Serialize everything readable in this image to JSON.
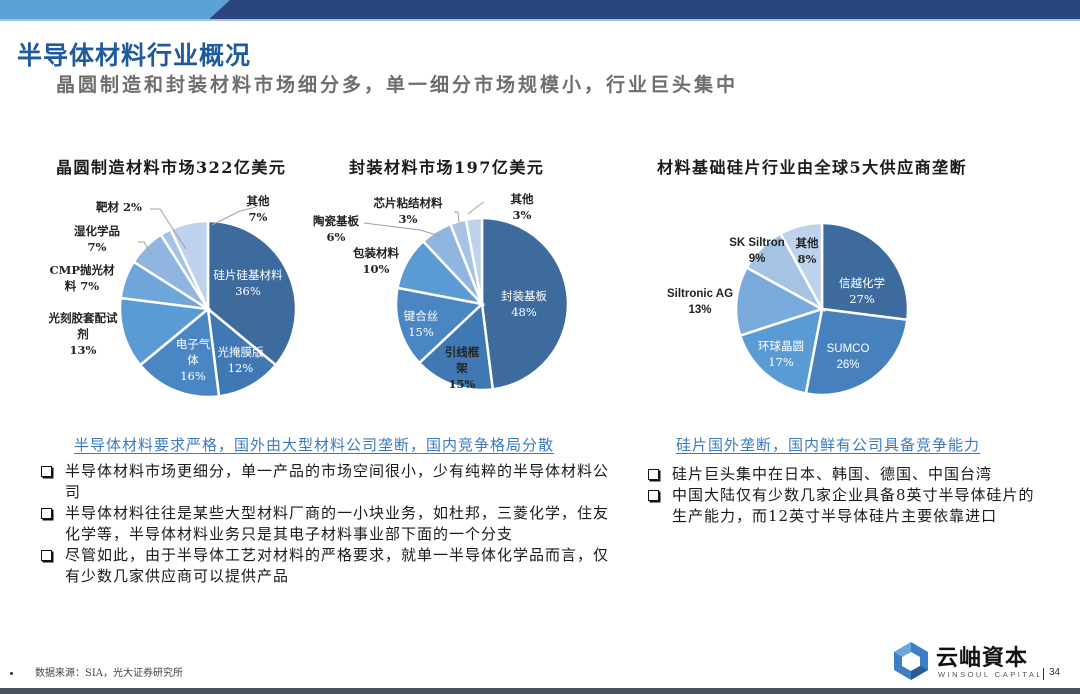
{
  "page": {
    "title": "半导体材料行业概况",
    "subtitle": "晶圆制造和封装材料市场细分多，单一细分市场规模小，行业巨头集中",
    "page_number": "34",
    "source": "数据来源：SIA，光大证券研究所"
  },
  "logo": {
    "name_cn": "云岫資本",
    "name_en": "WINSOUL CAPITAL"
  },
  "colors": {
    "header_dark": "#2b4580",
    "header_light": "#5ba3d6",
    "title_blue": "#1f5a9e",
    "link_blue": "#3a7bc0"
  },
  "chart_data": [
    {
      "type": "pie",
      "title": "晶圆制造材料市场322亿美元",
      "categories": [
        "硅片硅基材料",
        "光掩膜版",
        "电子气体",
        "光刻胶套配试剂",
        "CMP抛光材料",
        "湿化学品",
        "靶材",
        "其他"
      ],
      "values": [
        36,
        12,
        16,
        13,
        7,
        7,
        2,
        7
      ],
      "unit": "%",
      "colors": [
        "#3d6b9e",
        "#4078b4",
        "#4a86c4",
        "#5b9bd5",
        "#6ea6dc",
        "#8fb5e0",
        "#a6c3e6",
        "#bfd2ec"
      ],
      "labels": [
        {
          "name": "硅片硅基材料",
          "pct": "36%"
        },
        {
          "name": "光掩膜版",
          "pct": "12%"
        },
        {
          "name": "电子气体",
          "pct": "16%"
        },
        {
          "name": "光刻胶套配试剂",
          "pct": "13%"
        },
        {
          "name": "CMP抛光材料",
          "pct": "7%"
        },
        {
          "name": "湿化学品",
          "pct": "7%"
        },
        {
          "name": "靶材",
          "pct": "2%"
        },
        {
          "name": "其他",
          "pct": "7%"
        }
      ]
    },
    {
      "type": "pie",
      "title": "封装材料市场197亿美元",
      "categories": [
        "封装基板",
        "引线框架",
        "键合丝",
        "包装材料",
        "陶瓷基板",
        "芯片粘结材料",
        "其他"
      ],
      "values": [
        48,
        15,
        15,
        10,
        6,
        3,
        3
      ],
      "unit": "%",
      "colors": [
        "#3d6b9e",
        "#4078b4",
        "#4a86c4",
        "#5b9bd5",
        "#8fb5e0",
        "#a6c3e6",
        "#bfd2ec"
      ],
      "labels": [
        {
          "name": "封装基板",
          "pct": "48%"
        },
        {
          "name": "引线框架",
          "pct": "15%"
        },
        {
          "name": "键合丝",
          "pct": "15%"
        },
        {
          "name": "包装材料",
          "pct": "10%"
        },
        {
          "name": "陶瓷基板",
          "pct": "6%"
        },
        {
          "name": "芯片粘结材料",
          "pct": "3%"
        },
        {
          "name": "其他",
          "pct": "3%"
        }
      ]
    },
    {
      "type": "pie",
      "title": "材料基础硅片行业由全球5大供应商垄断",
      "categories": [
        "信越化学",
        "SUMCO",
        "环球晶圆",
        "Siltronic AG",
        "SK Siltron",
        "其他"
      ],
      "values": [
        27,
        26,
        17,
        13,
        9,
        8
      ],
      "unit": "%",
      "colors": [
        "#3d6b9e",
        "#4680bd",
        "#5b9bd5",
        "#7aaadc",
        "#a6c3e6",
        "#bfd2ec"
      ],
      "labels": [
        {
          "name": "信越化学",
          "pct": "27%"
        },
        {
          "name": "SUMCO",
          "pct": "26%"
        },
        {
          "name": "环球晶圆",
          "pct": "17%"
        },
        {
          "name": "Siltronic AG",
          "pct": "13%"
        },
        {
          "name": "SK Siltron",
          "pct": "9%"
        },
        {
          "name": "其他",
          "pct": "8%"
        }
      ]
    }
  ],
  "left_section": {
    "heading": "半导体材料要求严格，国外由大型材料公司垄断，国内竞争格局分散",
    "bullets": [
      "半导体材料市场更细分，单一产品的市场空间很小，少有纯粹的半导体材料公司",
      "半导体材料往往是某些大型材料厂商的一小块业务，如杜邦，三菱化学，住友化学等，半导体材料业务只是其电子材料事业部下面的一个分支",
      "尽管如此，由于半导体工艺对材料的严格要求，就单一半导体化学品而言，仅有少数几家供应商可以提供产品"
    ]
  },
  "right_section": {
    "heading": "硅片国外垄断，国内鲜有公司具备竞争能力",
    "bullets": [
      "硅片巨头集中在日本、韩国、德国、中国台湾",
      "中国大陆仅有少数几家企业具备8英寸半导体硅片的生产能力，而12英寸半导体硅片主要依靠进口"
    ]
  }
}
